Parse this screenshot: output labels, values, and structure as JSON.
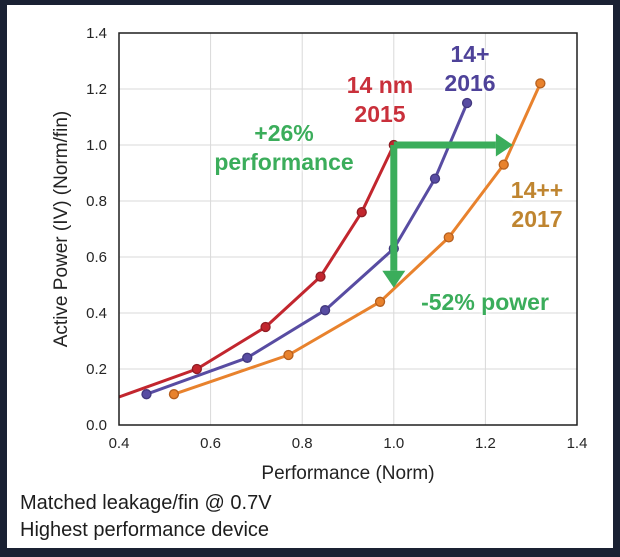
{
  "chart_data": {
    "type": "line",
    "title": "",
    "xlabel": "Performance (Norm)",
    "ylabel": "Active Power (IV) (Norm/fin)",
    "xlim": [
      0.4,
      1.4
    ],
    "ylim": [
      0,
      1.4
    ],
    "x_ticks": [
      0.4,
      0.6,
      0.8,
      1.0,
      1.2,
      1.4
    ],
    "x_tick_labels": [
      "0.4",
      "0.6",
      "0.8",
      "1.0",
      "1.2",
      "1.4"
    ],
    "y_ticks": [
      0.0,
      0.2,
      0.4,
      0.6,
      0.8,
      1.0,
      1.2,
      1.4
    ],
    "y_tick_labels": [
      "0.0",
      "0.2",
      "0.4",
      "0.6",
      "0.8",
      "1.0",
      "1.2",
      "1.4"
    ],
    "grid": true,
    "grid_color": "#d9d9d9",
    "frame_color": "#1f1f1f",
    "legend_position": "labels-on-chart",
    "series": [
      {
        "id": "14nm-2015",
        "name": "14 nm 2015",
        "color": "#c2262e",
        "marker_stroke": "#8f1d24",
        "line_start": [
          0.4,
          0.1
        ],
        "points": [
          [
            0.57,
            0.2
          ],
          [
            0.72,
            0.35
          ],
          [
            0.84,
            0.53
          ],
          [
            0.93,
            0.76
          ],
          [
            1.0,
            1.0
          ]
        ]
      },
      {
        "id": "14plus-2016",
        "name": "14+ 2016",
        "color": "#584ca2",
        "marker_stroke": "#42387e",
        "points": [
          [
            0.46,
            0.11
          ],
          [
            0.68,
            0.24
          ],
          [
            0.85,
            0.41
          ],
          [
            1.0,
            0.63
          ],
          [
            1.09,
            0.88
          ],
          [
            1.16,
            1.15
          ]
        ]
      },
      {
        "id": "14plusplus-2017",
        "name": "14++ 2017",
        "color": "#e8822d",
        "marker_stroke": "#b55f1e",
        "points": [
          [
            0.52,
            0.11
          ],
          [
            0.77,
            0.25
          ],
          [
            0.97,
            0.44
          ],
          [
            1.12,
            0.67
          ],
          [
            1.24,
            0.93
          ],
          [
            1.32,
            1.22
          ]
        ]
      }
    ],
    "annotations": [
      {
        "id": "performance-gain-arrow",
        "from": [
          1.0,
          1.0
        ],
        "to": [
          1.26,
          1.0
        ]
      },
      {
        "id": "power-reduction-arrow",
        "from": [
          1.0,
          1.0
        ],
        "to": [
          1.0,
          0.49
        ]
      }
    ],
    "annotation_color": "#3bad5b"
  },
  "labels": {
    "series_red": "14 nm\n2015",
    "series_purple": "14+\n2016",
    "series_orange": "14++\n2017",
    "perf_gain": "+26%\nperformance",
    "power_gain": "-52% power"
  },
  "footer": {
    "line1": "Matched leakage/fin @ 0.7V",
    "line2": "Highest performance device"
  },
  "colors": {
    "background": "#1a2133",
    "panel": "#ffffff",
    "red_label": "#c9303b",
    "purple_label": "#4e4299",
    "orange_label": "#bf8530",
    "green_label": "#3bad5b",
    "axis_text": "#262626",
    "footer_text": "#1d1d1d"
  }
}
